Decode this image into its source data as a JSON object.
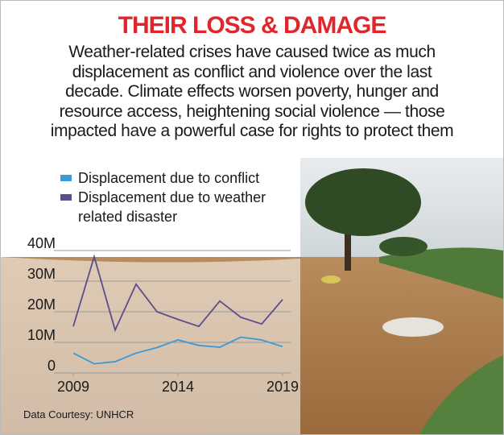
{
  "chart_data": {
    "type": "line",
    "title": "THEIR LOSS & DAMAGE",
    "subtitle": [
      "Weather-related crises have caused twice as much",
      "displacement as conflict and violence over the last",
      "decade. Climate effects worsen poverty, hunger and",
      "resource access, heightening social violence — those",
      "impacted have a powerful case for rights to protect them"
    ],
    "x": [
      2009,
      2010,
      2011,
      2012,
      2013,
      2014,
      2015,
      2016,
      2017,
      2018,
      2019
    ],
    "series": [
      {
        "name": "Displacement due to conflict",
        "color": "#3a9ad9",
        "values": [
          6.5,
          3,
          3.7,
          6.5,
          8.3,
          10.8,
          9,
          8.4,
          11.7,
          10.8,
          8.6
        ]
      },
      {
        "name": "Displacement due to weather related disaster",
        "color": "#5a4f8c",
        "values": [
          15.2,
          38,
          14,
          29,
          20,
          17.5,
          15.2,
          23.5,
          18.2,
          16,
          24
        ]
      }
    ],
    "xlim": [
      2009,
      2019
    ],
    "xticks": [
      2009,
      2014,
      2019
    ],
    "ylim": [
      0,
      40
    ],
    "yticks": [
      0,
      {
        "value": 10,
        "label": "10M"
      },
      {
        "value": 20,
        "label": "20M"
      },
      {
        "value": 30,
        "label": "30M"
      },
      {
        "value": 40,
        "label": "40M"
      }
    ],
    "grid": true,
    "source": "Data Courtesy: UNHCR"
  }
}
